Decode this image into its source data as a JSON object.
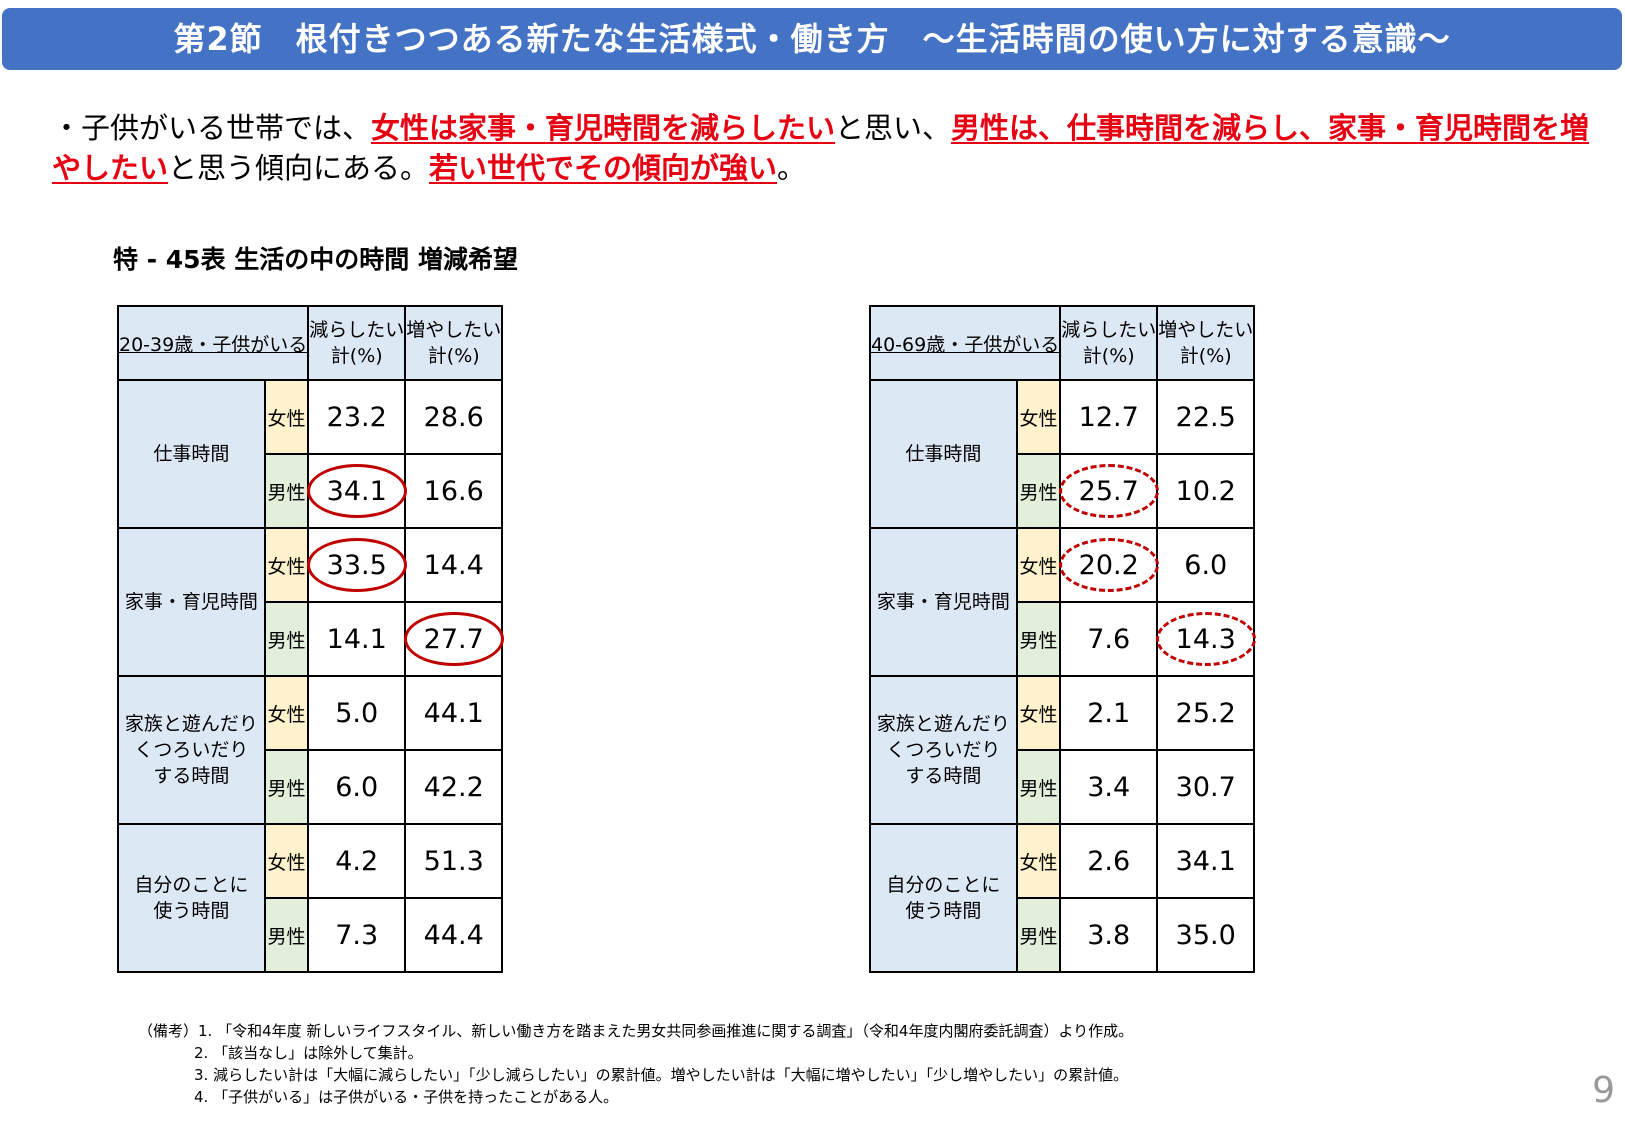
{
  "header": {
    "title": "第2節　根付きつつある新たな生活様式・働き方　～生活時間の使い方に対する意識～"
  },
  "lead": {
    "segments": [
      {
        "text": "・子供がいる世帯では、",
        "red": false
      },
      {
        "text": "女性は家事・育児時間を減らしたい",
        "red": true
      },
      {
        "text": "と思い、",
        "red": false
      },
      {
        "text": "男性は、仕事時間を減らし、家事・育児時間を増やしたい",
        "red": true
      },
      {
        "text": "と思う傾向にある。",
        "red": false
      },
      {
        "text": "若い世代でその傾向が強い",
        "red": true
      },
      {
        "text": "。",
        "red": false
      }
    ]
  },
  "table_title": "特 - 45表 生活の中の時間 増減希望",
  "tables": [
    {
      "group": "20-39歳・子供がいる",
      "col1": "減らしたい\n計(%)",
      "col2": "増やしたい\n計(%)",
      "categories": [
        {
          "label": "仕事時間",
          "rows": [
            {
              "sex": "女性",
              "dec": "23.2",
              "inc": "28.6"
            },
            {
              "sex": "男性",
              "dec": "34.1",
              "inc": "16.6",
              "dec_mark": "solid"
            }
          ]
        },
        {
          "label": "家事・育児時間",
          "rows": [
            {
              "sex": "女性",
              "dec": "33.5",
              "inc": "14.4",
              "dec_mark": "solid"
            },
            {
              "sex": "男性",
              "dec": "14.1",
              "inc": "27.7",
              "inc_mark": "solid"
            }
          ]
        },
        {
          "label": "家族と遊んだり\nくつろいだり\nする時間",
          "rows": [
            {
              "sex": "女性",
              "dec": "5.0",
              "inc": "44.1"
            },
            {
              "sex": "男性",
              "dec": "6.0",
              "inc": "42.2"
            }
          ]
        },
        {
          "label": "自分のことに\n使う時間",
          "rows": [
            {
              "sex": "女性",
              "dec": "4.2",
              "inc": "51.3"
            },
            {
              "sex": "男性",
              "dec": "7.3",
              "inc": "44.4"
            }
          ]
        }
      ]
    },
    {
      "group": "40-69歳・子供がいる",
      "col1": "減らしたい\n計(%)",
      "col2": "増やしたい\n計(%)",
      "categories": [
        {
          "label": "仕事時間",
          "rows": [
            {
              "sex": "女性",
              "dec": "12.7",
              "inc": "22.5"
            },
            {
              "sex": "男性",
              "dec": "25.7",
              "inc": "10.2",
              "dec_mark": "dashed"
            }
          ]
        },
        {
          "label": "家事・育児時間",
          "rows": [
            {
              "sex": "女性",
              "dec": "20.2",
              "inc": "6.0",
              "dec_mark": "dashed"
            },
            {
              "sex": "男性",
              "dec": "7.6",
              "inc": "14.3",
              "inc_mark": "dashed"
            }
          ]
        },
        {
          "label": "家族と遊んだり\nくつろいだり\nする時間",
          "rows": [
            {
              "sex": "女性",
              "dec": "2.1",
              "inc": "25.2"
            },
            {
              "sex": "男性",
              "dec": "3.4",
              "inc": "30.7"
            }
          ]
        },
        {
          "label": "自分のことに\n使う時間",
          "rows": [
            {
              "sex": "女性",
              "dec": "2.6",
              "inc": "34.1"
            },
            {
              "sex": "男性",
              "dec": "3.8",
              "inc": "35.0"
            }
          ]
        }
      ]
    }
  ],
  "notes": [
    "（備考）1. 「令和4年度 新しいライフスタイル、新しい働き方を踏まえた男女共同参画推進に関する調査」（令和4年度内閣府委託調査）より作成。",
    "2. 「該当なし」は除外して集計。",
    "3. 減らしたい計は「大幅に減らしたい」「少し減らしたい」の累計値。増やしたい計は「大幅に増やしたい」「少し増やしたい」の累計値。",
    "4. 「子供がいる」は子供がいる・子供を持ったことがある人。"
  ],
  "page_number": "9",
  "colors": {
    "header": "#4472c4",
    "highlight": "#e60012",
    "female": "#fff2cc",
    "male": "#e2efda",
    "label_bg": "#dde8f5"
  }
}
